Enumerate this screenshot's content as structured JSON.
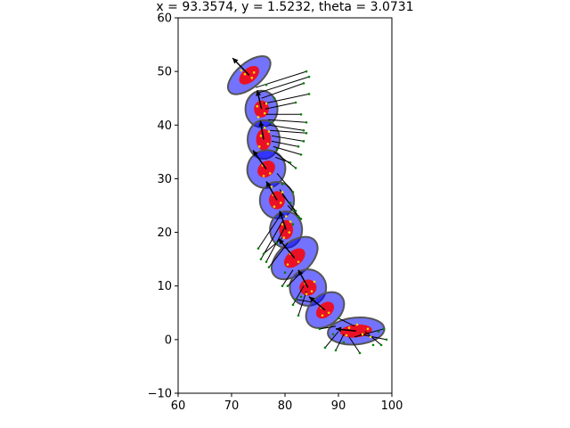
{
  "chart_data": {
    "type": "scatter",
    "title": "x = 93.3574, y = 1.5232, theta = 3.0731",
    "xlabel": "",
    "ylabel": "",
    "xlim": [
      60,
      100
    ],
    "ylim": [
      -10,
      60
    ],
    "x_ticks": [
      60,
      70,
      80,
      90,
      100
    ],
    "y_ticks": [
      -10,
      0,
      10,
      20,
      30,
      40,
      50,
      60
    ],
    "x_tick_labels": [
      "60",
      "70",
      "80",
      "90",
      "100"
    ],
    "y_tick_labels": [
      "−10",
      "0",
      "10",
      "20",
      "30",
      "40",
      "50",
      "60"
    ],
    "grid": false,
    "colors": {
      "outer_ellipse": "#0000ff",
      "inner_ellipse": "#ff0000",
      "outline": "#555555",
      "arrow": "#000000",
      "lidar_point": "#008000",
      "particle": "#ffd700"
    },
    "ellipses": [
      {
        "cx": 73.3,
        "cy": 49.3,
        "rx": 4.8,
        "ry": 2.3,
        "angle_deg": -40,
        "irx": 2.2,
        "iry": 1.3
      },
      {
        "cx": 75.6,
        "cy": 43.0,
        "rx": 3.0,
        "ry": 3.4,
        "angle_deg": 0,
        "irx": 1.4,
        "iry": 1.6
      },
      {
        "cx": 76.0,
        "cy": 37.3,
        "rx": 3.0,
        "ry": 3.6,
        "angle_deg": 0,
        "irx": 1.4,
        "iry": 2.0
      },
      {
        "cx": 76.5,
        "cy": 31.8,
        "rx": 3.6,
        "ry": 3.5,
        "angle_deg": -40,
        "irx": 1.8,
        "iry": 1.4
      },
      {
        "cx": 78.5,
        "cy": 26.0,
        "rx": 3.2,
        "ry": 3.4,
        "angle_deg": 0,
        "irx": 1.5,
        "iry": 1.7
      },
      {
        "cx": 80.2,
        "cy": 20.5,
        "rx": 3.0,
        "ry": 3.4,
        "angle_deg": 0,
        "irx": 1.3,
        "iry": 1.8
      },
      {
        "cx": 81.8,
        "cy": 15.2,
        "rx": 5.0,
        "ry": 3.0,
        "angle_deg": -40,
        "irx": 2.3,
        "iry": 1.4
      },
      {
        "cx": 84.3,
        "cy": 9.7,
        "rx": 3.4,
        "ry": 3.4,
        "angle_deg": 0,
        "irx": 1.6,
        "iry": 1.5
      },
      {
        "cx": 87.5,
        "cy": 5.5,
        "rx": 4.0,
        "ry": 2.8,
        "angle_deg": -40,
        "irx": 1.9,
        "iry": 1.3
      },
      {
        "cx": 93.3,
        "cy": 1.6,
        "rx": 5.3,
        "ry": 2.5,
        "angle_deg": -5,
        "irx": 3.0,
        "iry": 1.2
      }
    ],
    "poses": [
      {
        "x": 73.3,
        "y": 49.3,
        "tx": 70.2,
        "ty": 52.5
      },
      {
        "x": 75.6,
        "y": 43.0,
        "tx": 74.8,
        "ty": 46.5
      },
      {
        "x": 76.0,
        "y": 37.3,
        "tx": 75.4,
        "ty": 40.8
      },
      {
        "x": 76.5,
        "y": 31.8,
        "tx": 74.0,
        "ty": 35.3
      },
      {
        "x": 78.5,
        "y": 26.0,
        "tx": 76.5,
        "ty": 29.5
      },
      {
        "x": 80.2,
        "y": 20.5,
        "tx": 79.0,
        "ty": 24.0
      },
      {
        "x": 81.8,
        "y": 15.2,
        "tx": 78.8,
        "ty": 18.8
      },
      {
        "x": 84.3,
        "y": 9.7,
        "tx": 82.5,
        "ty": 13.0
      },
      {
        "x": 87.5,
        "y": 5.5,
        "tx": 84.5,
        "ty": 8.0
      },
      {
        "x": 93.3,
        "y": 1.6,
        "tx": 89.5,
        "ty": 2.0
      }
    ],
    "lidar_rays": [
      {
        "x1": 74.5,
        "y1": 47.0,
        "x2": 84.0,
        "y2": 50.0
      },
      {
        "x1": 75.0,
        "y1": 46.0,
        "x2": 84.5,
        "y2": 49.0
      },
      {
        "x1": 75.6,
        "y1": 45.0,
        "x2": 83.5,
        "y2": 47.8
      },
      {
        "x1": 76.0,
        "y1": 44.0,
        "x2": 84.5,
        "y2": 45.8
      },
      {
        "x1": 76.3,
        "y1": 43.0,
        "x2": 82.0,
        "y2": 44.2
      },
      {
        "x1": 76.5,
        "y1": 42.0,
        "x2": 83.0,
        "y2": 42.0
      },
      {
        "x1": 76.8,
        "y1": 41.0,
        "x2": 84.0,
        "y2": 40.5
      },
      {
        "x1": 77.0,
        "y1": 40.0,
        "x2": 83.5,
        "y2": 39.0
      },
      {
        "x1": 77.2,
        "y1": 39.0,
        "x2": 84.0,
        "y2": 38.5
      },
      {
        "x1": 77.5,
        "y1": 38.0,
        "x2": 83.5,
        "y2": 37.0
      },
      {
        "x1": 77.5,
        "y1": 37.0,
        "x2": 82.5,
        "y2": 36.0
      },
      {
        "x1": 77.8,
        "y1": 36.0,
        "x2": 83.0,
        "y2": 34.5
      },
      {
        "x1": 78.0,
        "y1": 35.0,
        "x2": 82.0,
        "y2": 32.0
      },
      {
        "x1": 78.2,
        "y1": 34.0,
        "x2": 81.0,
        "y2": 33.0
      },
      {
        "x1": 78.5,
        "y1": 31.0,
        "x2": 81.5,
        "y2": 27.5
      },
      {
        "x1": 79.0,
        "y1": 28.0,
        "x2": 82.5,
        "y2": 23.0
      },
      {
        "x1": 79.5,
        "y1": 27.0,
        "x2": 82.0,
        "y2": 24.0
      },
      {
        "x1": 80.5,
        "y1": 25.0,
        "x2": 83.0,
        "y2": 22.5
      },
      {
        "x1": 79.0,
        "y1": 23.0,
        "x2": 75.0,
        "y2": 17.0
      },
      {
        "x1": 79.5,
        "y1": 22.0,
        "x2": 75.5,
        "y2": 15.0
      },
      {
        "x1": 80.0,
        "y1": 21.0,
        "x2": 76.5,
        "y2": 14.5
      },
      {
        "x1": 79.5,
        "y1": 19.0,
        "x2": 76.0,
        "y2": 16.0
      },
      {
        "x1": 80.5,
        "y1": 18.0,
        "x2": 77.0,
        "y2": 13.5
      },
      {
        "x1": 81.5,
        "y1": 13.0,
        "x2": 79.5,
        "y2": 10.0
      },
      {
        "x1": 82.5,
        "y1": 12.0,
        "x2": 80.5,
        "y2": 10.0
      },
      {
        "x1": 83.5,
        "y1": 10.0,
        "x2": 81.5,
        "y2": 6.5
      },
      {
        "x1": 84.0,
        "y1": 9.0,
        "x2": 82.5,
        "y2": 4.5
      },
      {
        "x1": 85.0,
        "y1": 7.0,
        "x2": 82.0,
        "y2": 7.5
      },
      {
        "x1": 89.5,
        "y1": 2.5,
        "x2": 86.5,
        "y2": 2.0
      },
      {
        "x1": 90.0,
        "y1": 1.5,
        "x2": 87.5,
        "y2": -1.5
      },
      {
        "x1": 91.0,
        "y1": 1.0,
        "x2": 89.5,
        "y2": -2.0
      },
      {
        "x1": 92.0,
        "y1": 0.5,
        "x2": 94.0,
        "y2": -2.5
      },
      {
        "x1": 93.0,
        "y1": 0.5,
        "x2": 98.5,
        "y2": 2.0
      },
      {
        "x1": 94.0,
        "y1": 1.0,
        "x2": 99.0,
        "y2": 0.0
      },
      {
        "x1": 95.0,
        "y1": 1.5,
        "x2": 98.0,
        "y2": -1.0
      },
      {
        "x1": 93.0,
        "y1": 2.5,
        "x2": 90.0,
        "y2": 4.0
      }
    ],
    "particles": [
      {
        "x": 72.5,
        "y": 49.5
      },
      {
        "x": 73.8,
        "y": 48.8
      },
      {
        "x": 74.2,
        "y": 49.8
      },
      {
        "x": 71.8,
        "y": 50.2
      },
      {
        "x": 74.8,
        "y": 43.5
      },
      {
        "x": 76.2,
        "y": 42.2
      },
      {
        "x": 75.0,
        "y": 41.5
      },
      {
        "x": 76.5,
        "y": 44.0
      },
      {
        "x": 75.5,
        "y": 38.0
      },
      {
        "x": 76.8,
        "y": 36.5
      },
      {
        "x": 75.2,
        "y": 36.0
      },
      {
        "x": 77.0,
        "y": 38.8
      },
      {
        "x": 76.2,
        "y": 39.5
      },
      {
        "x": 75.8,
        "y": 32.5
      },
      {
        "x": 77.2,
        "y": 31.0
      },
      {
        "x": 76.0,
        "y": 30.5
      },
      {
        "x": 77.8,
        "y": 27.0
      },
      {
        "x": 79.2,
        "y": 25.5
      },
      {
        "x": 78.0,
        "y": 24.8
      },
      {
        "x": 79.5,
        "y": 27.5
      },
      {
        "x": 77.5,
        "y": 28.5
      },
      {
        "x": 79.5,
        "y": 21.5
      },
      {
        "x": 80.8,
        "y": 20.0
      },
      {
        "x": 79.8,
        "y": 19.0
      },
      {
        "x": 81.0,
        "y": 22.0
      },
      {
        "x": 80.2,
        "y": 23.0
      },
      {
        "x": 81.0,
        "y": 16.0
      },
      {
        "x": 82.5,
        "y": 14.5
      },
      {
        "x": 80.5,
        "y": 14.0
      },
      {
        "x": 83.8,
        "y": 10.5
      },
      {
        "x": 85.0,
        "y": 9.0
      },
      {
        "x": 84.0,
        "y": 8.5
      },
      {
        "x": 85.5,
        "y": 10.8
      },
      {
        "x": 86.8,
        "y": 6.0
      },
      {
        "x": 88.2,
        "y": 5.0
      },
      {
        "x": 87.0,
        "y": 4.5
      },
      {
        "x": 92.0,
        "y": 2.2
      },
      {
        "x": 94.5,
        "y": 1.0
      },
      {
        "x": 93.5,
        "y": 2.8
      },
      {
        "x": 91.5,
        "y": 0.8
      },
      {
        "x": 95.5,
        "y": 2.0
      },
      {
        "x": 96.0,
        "y": 0.5
      }
    ],
    "landmarks": [
      {
        "x": 84.0,
        "y": 50.0
      },
      {
        "x": 84.5,
        "y": 49.0
      },
      {
        "x": 83.5,
        "y": 47.8
      },
      {
        "x": 84.5,
        "y": 45.8
      },
      {
        "x": 82.0,
        "y": 44.2
      },
      {
        "x": 83.0,
        "y": 42.0
      },
      {
        "x": 84.0,
        "y": 40.5
      },
      {
        "x": 83.5,
        "y": 39.0
      },
      {
        "x": 84.0,
        "y": 38.5
      },
      {
        "x": 83.5,
        "y": 37.0
      },
      {
        "x": 82.5,
        "y": 36.0
      },
      {
        "x": 83.0,
        "y": 34.5
      },
      {
        "x": 82.0,
        "y": 32.0
      },
      {
        "x": 81.0,
        "y": 33.0
      },
      {
        "x": 81.5,
        "y": 27.5
      },
      {
        "x": 82.5,
        "y": 23.0
      },
      {
        "x": 82.0,
        "y": 24.0
      },
      {
        "x": 83.0,
        "y": 22.5
      },
      {
        "x": 75.0,
        "y": 17.0
      },
      {
        "x": 75.5,
        "y": 15.0
      },
      {
        "x": 76.5,
        "y": 14.5
      },
      {
        "x": 76.0,
        "y": 16.0
      },
      {
        "x": 77.0,
        "y": 13.5
      },
      {
        "x": 79.5,
        "y": 10.0
      },
      {
        "x": 80.5,
        "y": 10.0
      },
      {
        "x": 81.5,
        "y": 6.5
      },
      {
        "x": 82.5,
        "y": 4.5
      },
      {
        "x": 82.0,
        "y": 7.5
      },
      {
        "x": 86.5,
        "y": 2.0
      },
      {
        "x": 87.5,
        "y": -1.5
      },
      {
        "x": 89.5,
        "y": -2.0
      },
      {
        "x": 94.0,
        "y": -2.5
      },
      {
        "x": 98.5,
        "y": 2.0
      },
      {
        "x": 99.0,
        "y": 0.0
      },
      {
        "x": 98.0,
        "y": -1.0
      },
      {
        "x": 90.0,
        "y": 4.0
      },
      {
        "x": 76.5,
        "y": 47.5
      },
      {
        "x": 78.0,
        "y": 45.0
      },
      {
        "x": 77.5,
        "y": 40.5
      },
      {
        "x": 78.5,
        "y": 35.5
      },
      {
        "x": 79.5,
        "y": 29.0
      },
      {
        "x": 81.0,
        "y": 25.5
      },
      {
        "x": 81.5,
        "y": 21.5
      },
      {
        "x": 78.5,
        "y": 18.0
      },
      {
        "x": 80.0,
        "y": 12.5
      },
      {
        "x": 83.0,
        "y": 8.0
      },
      {
        "x": 89.0,
        "y": 1.0
      },
      {
        "x": 91.0,
        "y": -0.5
      },
      {
        "x": 96.5,
        "y": -1.0
      },
      {
        "x": 97.5,
        "y": 1.5
      }
    ]
  }
}
